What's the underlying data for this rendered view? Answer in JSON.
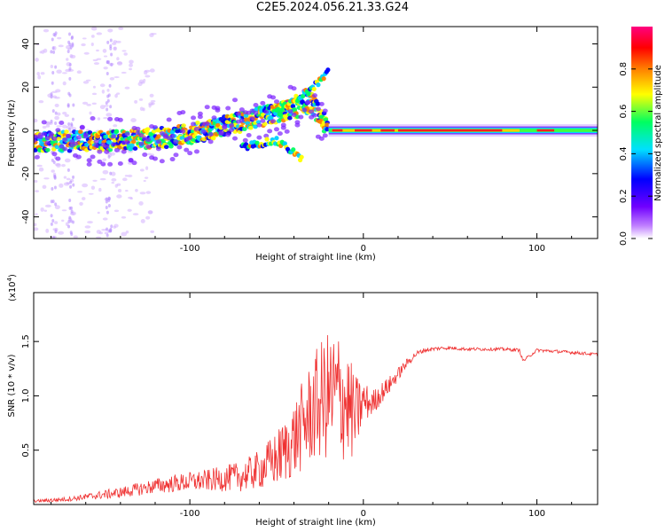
{
  "title": "C2E5.2024.056.21.33.G24",
  "chart_data": [
    {
      "type": "heatmap",
      "title": "C2E5.2024.056.21.33.G24",
      "xlabel": "Height of straight line (km)",
      "ylabel": "Frequency (Hz)",
      "xlim": [
        -190,
        135
      ],
      "ylim": [
        -50,
        48
      ],
      "x_ticks": [
        -100,
        0,
        100
      ],
      "y_ticks": [
        40,
        20,
        0,
        -20,
        -40
      ],
      "colorbar": {
        "label": "Normalized spectral amplitude",
        "range": [
          0.0,
          1.0
        ],
        "ticks": [
          "0.0",
          "0.2",
          "0.4",
          "0.6",
          "0.8"
        ],
        "colormap": [
          "#ffffff",
          "#c080ff",
          "#7000ff",
          "#0000ff",
          "#00e0ff",
          "#00ff60",
          "#ffff00",
          "#ff8000",
          "#ff0000",
          "#ff0080"
        ]
      },
      "ridge": {
        "x": [
          -190,
          -170,
          -150,
          -130,
          -110,
          -90,
          -70,
          -50,
          -40,
          -30,
          -20,
          -10,
          0,
          20,
          50,
          80,
          100,
          130
        ],
        "y": [
          -6,
          -5,
          -5,
          -4,
          -3,
          0,
          4,
          8,
          10,
          13,
          0,
          0,
          0,
          0,
          0,
          0,
          0,
          0
        ]
      },
      "upper_branch": {
        "x": [
          -50,
          -40,
          -30,
          -20
        ],
        "y": [
          8,
          14,
          19,
          27
        ]
      },
      "lower_branch": {
        "x": [
          -70,
          -60,
          -50,
          -40,
          -35
        ],
        "y": [
          -8,
          -6,
          -5,
          -10,
          -14
        ]
      }
    },
    {
      "type": "line",
      "xlabel": "Height of straight line (km)",
      "ylabel": "SNR (10 * v/v)",
      "exponent_label": "(x10",
      "exponent_power": "4",
      "exponent_close": ")",
      "xlim": [
        -190,
        135
      ],
      "ylim": [
        0,
        1.95
      ],
      "x_ticks": [
        -100,
        0,
        100
      ],
      "y_ticks": [
        "0.5",
        "1.0",
        "1.5"
      ],
      "color": "#ef3232",
      "series": [
        {
          "x": [
            -190,
            -180,
            -170,
            -160,
            -150,
            -140,
            -130,
            -120,
            -110,
            -100,
            -90,
            -80,
            -70,
            -60,
            -50,
            -45,
            -40,
            -35,
            -30,
            -25,
            -20,
            -15,
            -10,
            -5,
            0,
            5,
            10,
            15,
            20,
            25,
            30,
            35,
            40,
            45,
            50,
            60,
            70,
            80,
            90,
            92,
            100,
            110,
            120,
            135
          ],
          "y": [
            0.03,
            0.04,
            0.05,
            0.07,
            0.09,
            0.11,
            0.14,
            0.17,
            0.19,
            0.21,
            0.22,
            0.24,
            0.26,
            0.32,
            0.42,
            0.5,
            0.6,
            0.72,
            0.85,
            0.95,
            1.0,
            1.0,
            0.95,
            0.8,
            0.95,
            0.93,
            1.02,
            1.1,
            1.2,
            1.3,
            1.38,
            1.42,
            1.43,
            1.44,
            1.44,
            1.43,
            1.43,
            1.43,
            1.42,
            1.32,
            1.42,
            1.41,
            1.4,
            1.38
          ],
          "amplitude": [
            0.01,
            0.02,
            0.02,
            0.03,
            0.04,
            0.05,
            0.06,
            0.07,
            0.08,
            0.09,
            0.1,
            0.12,
            0.14,
            0.18,
            0.26,
            0.3,
            0.36,
            0.42,
            0.48,
            0.55,
            0.6,
            0.65,
            0.55,
            0.4,
            0.2,
            0.12,
            0.1,
            0.08,
            0.06,
            0.04,
            0.03,
            0.02,
            0.02,
            0.015,
            0.015,
            0.015,
            0.015,
            0.015,
            0.015,
            0.015,
            0.015,
            0.015,
            0.015,
            0.015
          ]
        }
      ]
    }
  ]
}
